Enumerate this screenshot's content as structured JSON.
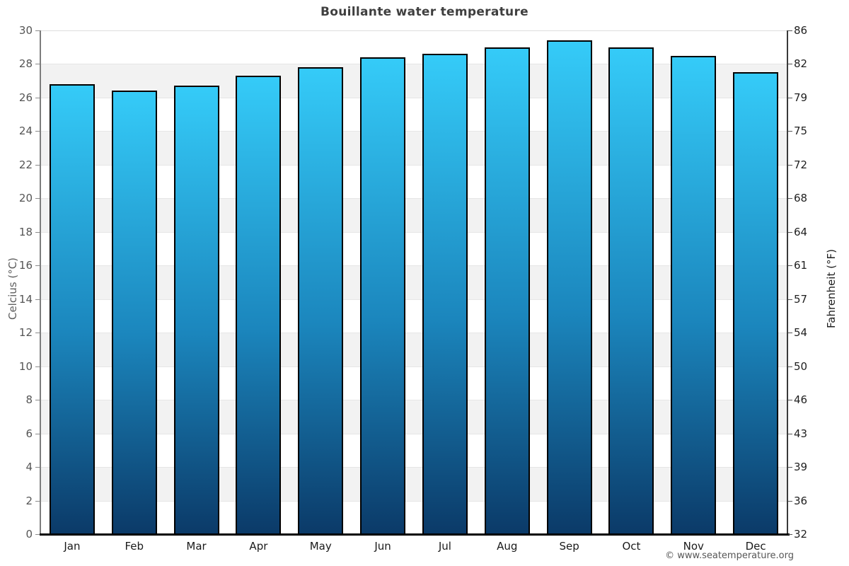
{
  "title": "Bouillante water temperature",
  "watermark": "© www.seatemperature.org",
  "axes": {
    "left_title": "Celcius (°C)",
    "right_title": "Fahrenheit (°F)"
  },
  "chart_data": {
    "type": "bar",
    "title": "Bouillante water temperature",
    "categories": [
      "Jan",
      "Feb",
      "Mar",
      "Apr",
      "May",
      "Jun",
      "Jul",
      "Aug",
      "Sep",
      "Oct",
      "Nov",
      "Dec"
    ],
    "values": [
      26.8,
      26.4,
      26.7,
      27.3,
      27.8,
      28.4,
      28.6,
      29.0,
      29.4,
      29.0,
      28.5,
      27.5
    ],
    "xlabel": "",
    "ylabel_left": "Celcius (°C)",
    "ylabel_right": "Fahrenheit (°F)",
    "ylim_celsius": [
      0,
      30
    ],
    "yticks_celsius": [
      0,
      2,
      4,
      6,
      8,
      10,
      12,
      14,
      16,
      18,
      20,
      22,
      24,
      26,
      28,
      30
    ],
    "yticks_fahrenheit": [
      32,
      36,
      39,
      43,
      46,
      50,
      54,
      57,
      61,
      64,
      68,
      72,
      75,
      79,
      82,
      86
    ],
    "grid": "alternating horizontal bands every 2°C",
    "legend": "none",
    "colors": {
      "bar_top": "#35CBF8",
      "bar_bottom": "#0B3A68",
      "bar_border": "#000000",
      "band_gray": "#f2f2f2",
      "band_white": "#ffffff"
    }
  }
}
